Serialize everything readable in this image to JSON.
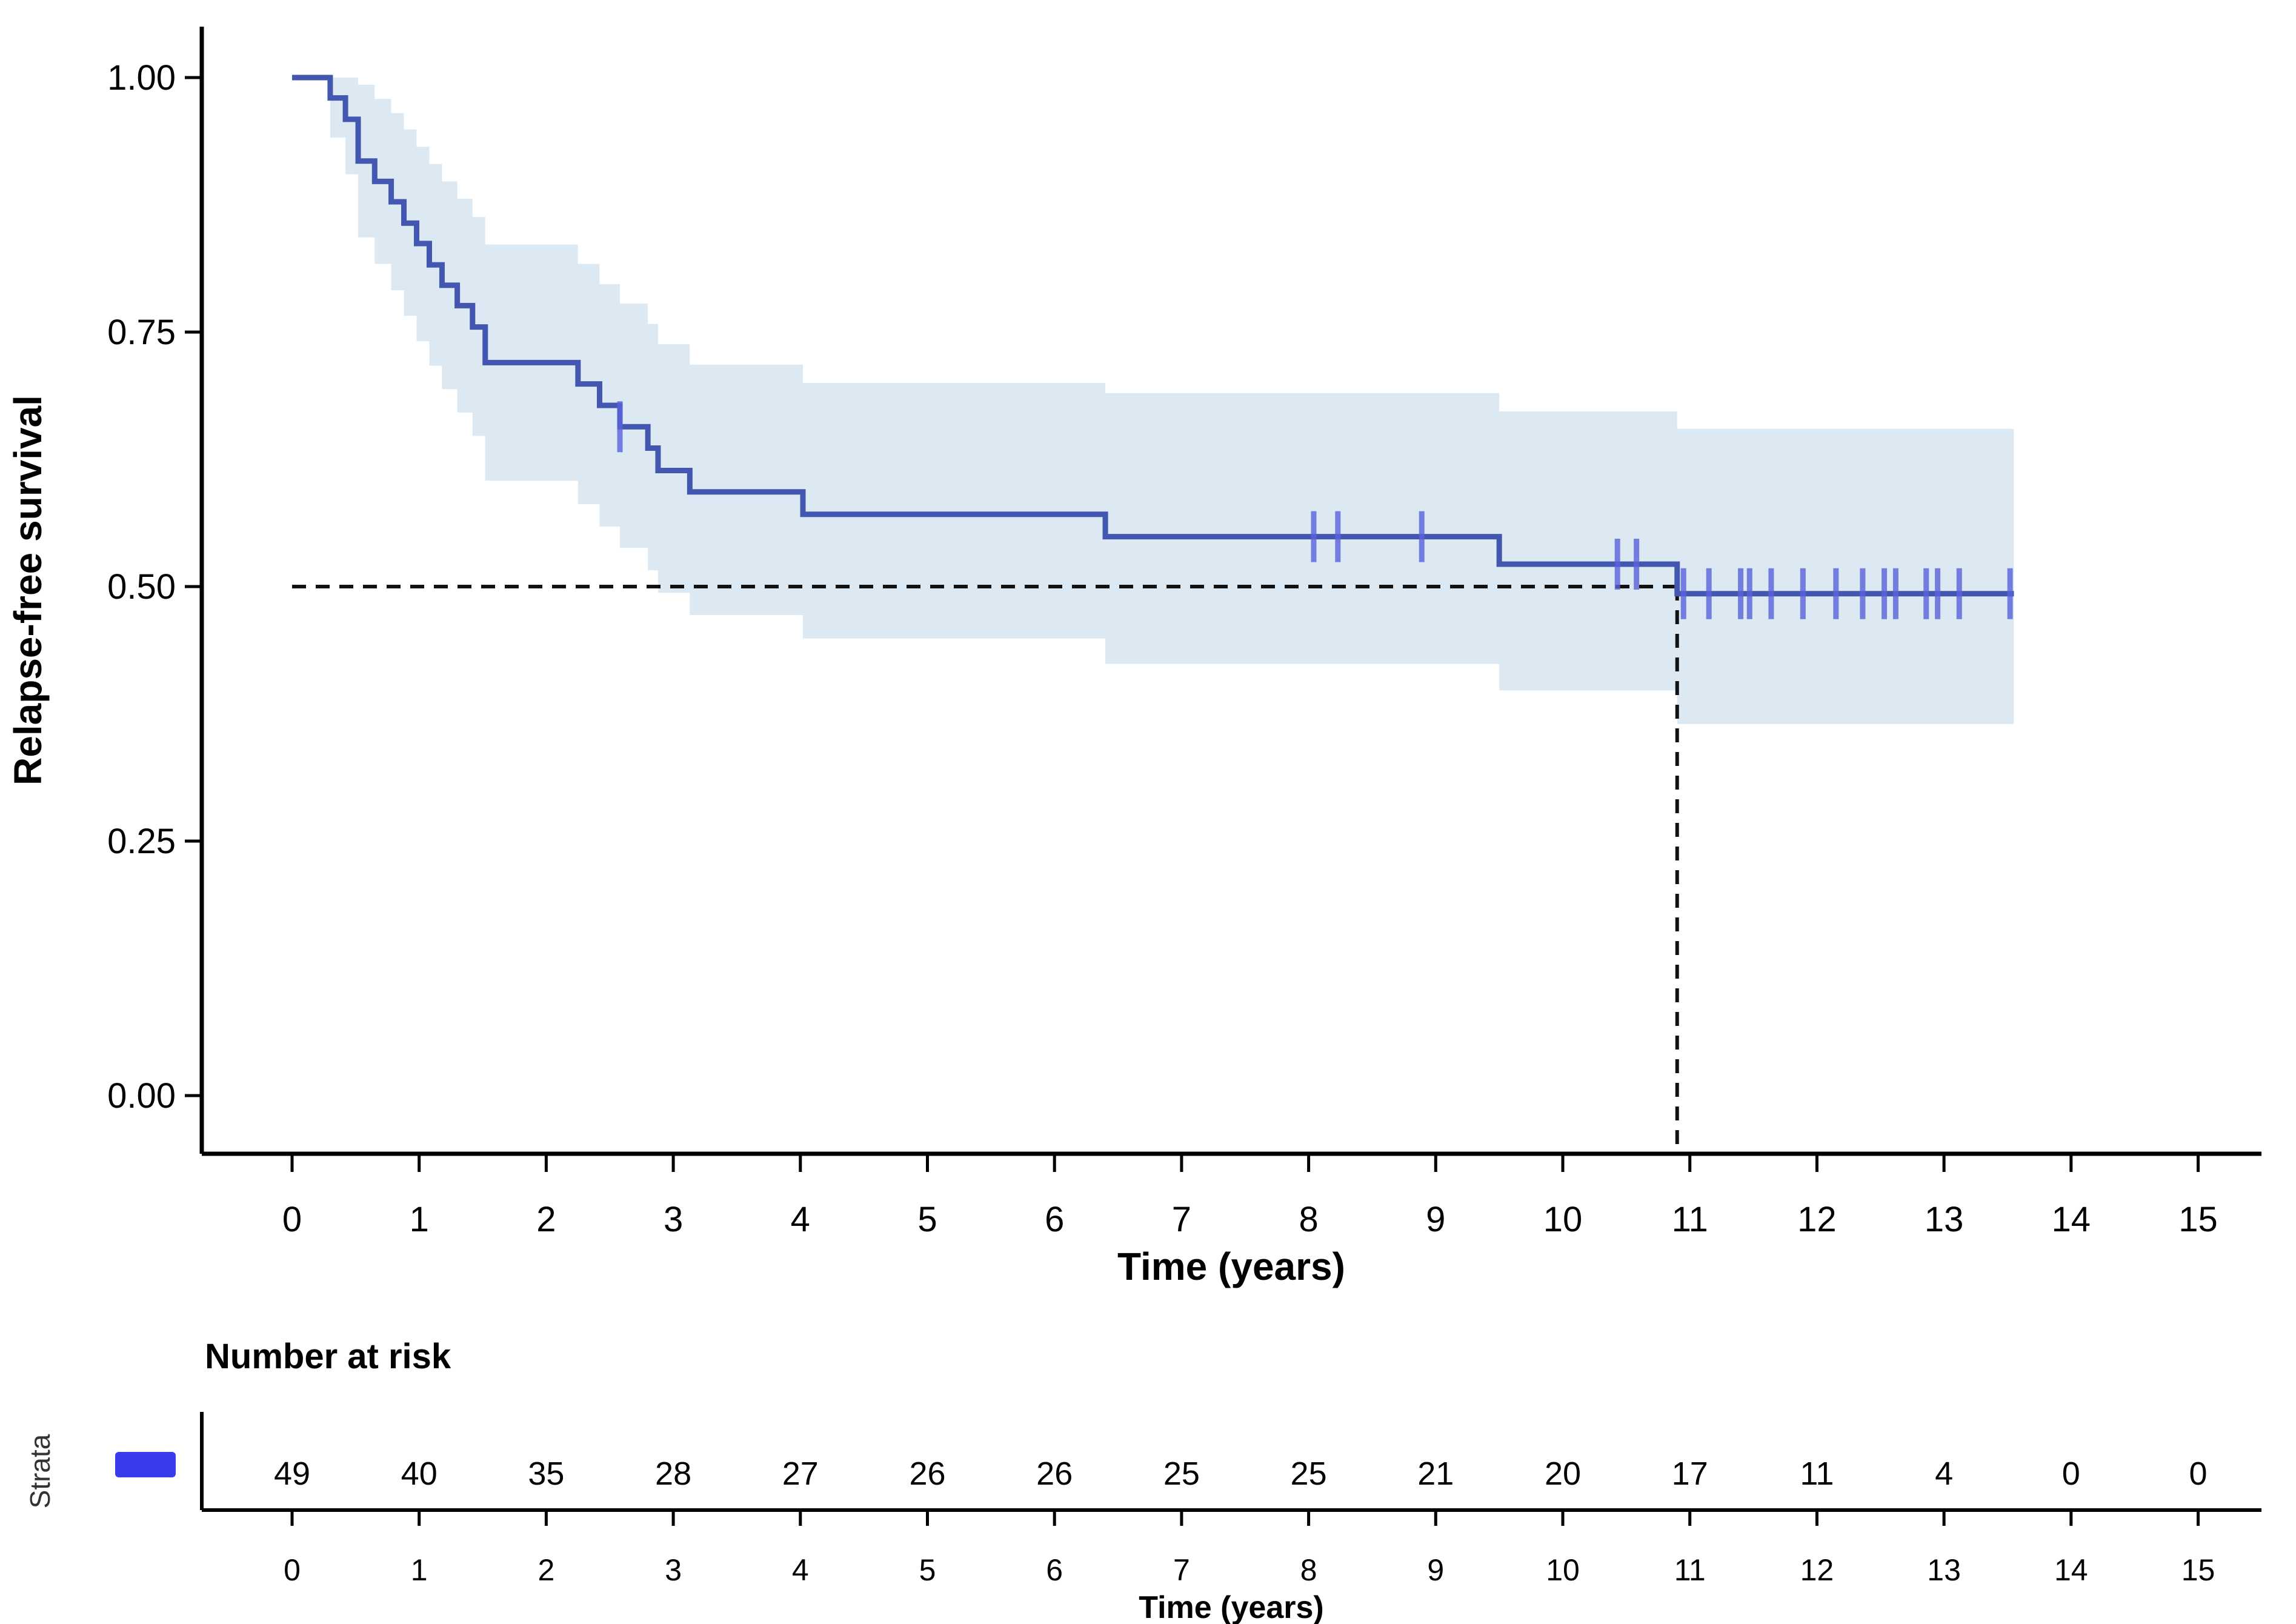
{
  "chart_data": {
    "type": "line",
    "subtype": "kaplan-meier-step-with-ci-ribbon",
    "title": "",
    "xlabel": "Time (years)",
    "ylabel": "Relapse-free survival",
    "xlim": [
      0,
      15
    ],
    "ylim": [
      0,
      1
    ],
    "x_ticks": [
      0,
      1,
      2,
      3,
      4,
      5,
      6,
      7,
      8,
      9,
      10,
      11,
      12,
      13,
      14,
      15
    ],
    "y_ticks": [
      1.0,
      0.75,
      0.5,
      0.25,
      0.0
    ],
    "y_tick_labels": [
      "1.00",
      "0.75",
      "0.50",
      "0.25",
      "0.00"
    ],
    "grid": "off",
    "legend_position": "left-of-risk-table",
    "line_color": "#4356B0",
    "ribbon_color": "#DCE8F2",
    "censor_color": "#5A63DC",
    "legend_swatch_color": "#3B3BEE",
    "axis_color": "#000000",
    "dashed_line_color": "#111111",
    "series": [
      {
        "name": "",
        "steps": [
          [
            0.0,
            1.0
          ],
          [
            0.3,
            0.98
          ],
          [
            0.42,
            0.959
          ],
          [
            0.52,
            0.918
          ],
          [
            0.65,
            0.898
          ],
          [
            0.78,
            0.878
          ],
          [
            0.88,
            0.857
          ],
          [
            0.98,
            0.837
          ],
          [
            1.08,
            0.816
          ],
          [
            1.18,
            0.796
          ],
          [
            1.3,
            0.776
          ],
          [
            1.42,
            0.755
          ],
          [
            1.52,
            0.72
          ],
          [
            2.25,
            0.699
          ],
          [
            2.42,
            0.678
          ],
          [
            2.58,
            0.657
          ],
          [
            2.8,
            0.636
          ],
          [
            2.88,
            0.614
          ],
          [
            3.13,
            0.593
          ],
          [
            4.02,
            0.571
          ],
          [
            6.4,
            0.549
          ],
          [
            9.5,
            0.522
          ],
          [
            10.9,
            0.493
          ]
        ],
        "end_time": 13.55,
        "censors": [
          [
            2.58,
            0.657
          ],
          [
            8.04,
            0.549
          ],
          [
            8.23,
            0.549
          ],
          [
            8.89,
            0.549
          ],
          [
            10.43,
            0.522
          ],
          [
            10.58,
            0.522
          ],
          [
            10.95,
            0.493
          ],
          [
            11.15,
            0.493
          ],
          [
            11.4,
            0.493
          ],
          [
            11.47,
            0.493
          ],
          [
            11.64,
            0.493
          ],
          [
            11.89,
            0.493
          ],
          [
            12.15,
            0.493
          ],
          [
            12.36,
            0.493
          ],
          [
            12.53,
            0.493
          ],
          [
            12.62,
            0.493
          ],
          [
            12.86,
            0.493
          ],
          [
            12.95,
            0.493
          ],
          [
            13.12,
            0.493
          ],
          [
            13.52,
            0.493
          ]
        ]
      }
    ],
    "ribbon_steps": [
      [
        0.3,
        0.941,
        1.0
      ],
      [
        0.42,
        0.905,
        1.0
      ],
      [
        0.52,
        0.843,
        0.993
      ],
      [
        0.65,
        0.817,
        0.979
      ],
      [
        0.78,
        0.791,
        0.965
      ],
      [
        0.88,
        0.766,
        0.949
      ],
      [
        0.98,
        0.741,
        0.932
      ],
      [
        1.08,
        0.717,
        0.915
      ],
      [
        1.18,
        0.694,
        0.898
      ],
      [
        1.3,
        0.671,
        0.881
      ],
      [
        1.42,
        0.648,
        0.863
      ],
      [
        1.52,
        0.604,
        0.836
      ],
      [
        2.25,
        0.581,
        0.817
      ],
      [
        2.42,
        0.559,
        0.797
      ],
      [
        2.58,
        0.538,
        0.778
      ],
      [
        2.8,
        0.516,
        0.758
      ],
      [
        2.88,
        0.494,
        0.738
      ],
      [
        3.13,
        0.472,
        0.718
      ],
      [
        4.02,
        0.449,
        0.7
      ],
      [
        6.4,
        0.424,
        0.69
      ],
      [
        9.5,
        0.398,
        0.672
      ],
      [
        10.9,
        0.365,
        0.655
      ]
    ],
    "median_reference": {
      "time": 10.9,
      "survival": 0.5
    },
    "risk_table": {
      "title": "Number at risk",
      "strata_label": "Strata",
      "xlabel": "Time (years)",
      "times": [
        0,
        1,
        2,
        3,
        4,
        5,
        6,
        7,
        8,
        9,
        10,
        11,
        12,
        13,
        14,
        15
      ],
      "values": [
        49,
        40,
        35,
        28,
        27,
        26,
        26,
        25,
        25,
        21,
        20,
        17,
        11,
        4,
        0,
        0
      ],
      "tick_label_color": "#4d4d4d"
    }
  }
}
